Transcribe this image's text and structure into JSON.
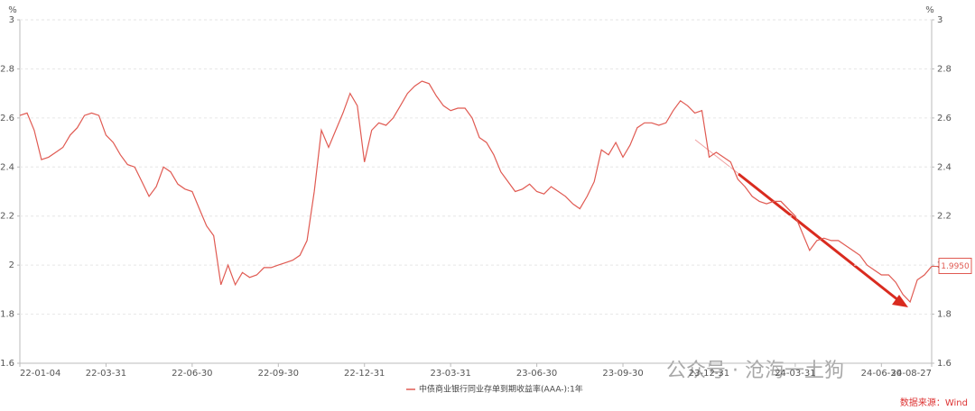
{
  "chart_data": {
    "type": "line",
    "categories": [
      "22-01-04",
      null,
      null,
      null,
      null,
      null,
      null,
      null,
      null,
      null,
      null,
      null,
      "22-03-31",
      null,
      null,
      null,
      null,
      null,
      null,
      null,
      null,
      null,
      null,
      null,
      "22-06-30",
      null,
      null,
      null,
      null,
      null,
      null,
      null,
      null,
      null,
      null,
      null,
      "22-09-30",
      null,
      null,
      null,
      null,
      null,
      null,
      null,
      null,
      null,
      null,
      null,
      "22-12-31",
      null,
      null,
      null,
      null,
      null,
      null,
      null,
      null,
      null,
      null,
      null,
      "23-03-31",
      null,
      null,
      null,
      null,
      null,
      null,
      null,
      null,
      null,
      null,
      null,
      "23-06-30",
      null,
      null,
      null,
      null,
      null,
      null,
      null,
      null,
      null,
      null,
      null,
      "23-09-30",
      null,
      null,
      null,
      null,
      null,
      null,
      null,
      null,
      null,
      null,
      null,
      "23-12-31",
      null,
      null,
      null,
      null,
      null,
      null,
      null,
      null,
      null,
      null,
      null,
      "24-03-31",
      null,
      null,
      null,
      null,
      null,
      null,
      null,
      null,
      null,
      null,
      null,
      "24-06-30",
      null,
      null,
      null,
      null,
      null,
      null,
      "24-08-27"
    ],
    "series": [
      {
        "name": "中债商业银行同业存单到期收益率(AAA-):1年",
        "color": "#e05a52",
        "values": [
          2.61,
          2.62,
          2.55,
          2.43,
          2.44,
          2.46,
          2.48,
          2.53,
          2.56,
          2.61,
          2.62,
          2.61,
          2.53,
          2.5,
          2.45,
          2.41,
          2.4,
          2.34,
          2.28,
          2.32,
          2.4,
          2.38,
          2.33,
          2.31,
          2.3,
          2.23,
          2.16,
          2.12,
          1.92,
          2.0,
          1.92,
          1.97,
          1.95,
          1.96,
          1.99,
          1.99,
          2.0,
          2.01,
          2.02,
          2.04,
          2.1,
          2.3,
          2.55,
          2.48,
          2.55,
          2.62,
          2.7,
          2.65,
          2.42,
          2.55,
          2.58,
          2.57,
          2.6,
          2.65,
          2.7,
          2.73,
          2.75,
          2.74,
          2.69,
          2.65,
          2.63,
          2.64,
          2.64,
          2.6,
          2.52,
          2.5,
          2.45,
          2.38,
          2.34,
          2.3,
          2.31,
          2.33,
          2.3,
          2.29,
          2.32,
          2.3,
          2.28,
          2.25,
          2.23,
          2.28,
          2.34,
          2.47,
          2.45,
          2.5,
          2.44,
          2.49,
          2.56,
          2.58,
          2.58,
          2.57,
          2.58,
          2.63,
          2.67,
          2.65,
          2.62,
          2.63,
          2.44,
          2.46,
          2.44,
          2.42,
          2.35,
          2.32,
          2.28,
          2.26,
          2.25,
          2.26,
          2.26,
          2.23,
          2.2,
          2.13,
          2.06,
          2.1,
          2.11,
          2.1,
          2.1,
          2.08,
          2.06,
          2.04,
          2.0,
          1.98,
          1.96,
          1.96,
          1.93,
          1.88,
          1.85,
          1.94,
          1.96,
          1.995
        ],
        "value_labels": [
          null,
          null,
          null,
          null,
          null,
          null,
          null,
          null,
          null,
          null,
          null,
          null,
          null,
          null,
          null,
          null,
          null,
          null,
          null,
          null,
          null,
          null,
          null,
          null,
          null,
          null,
          null,
          null,
          null,
          null,
          null,
          null,
          null,
          null,
          null,
          null,
          null,
          null,
          null,
          null,
          null,
          null,
          null,
          null,
          null,
          null,
          null,
          null,
          null,
          null,
          null,
          null,
          null,
          null,
          null,
          null,
          null,
          null,
          null,
          null,
          null,
          null,
          null,
          null,
          null,
          null,
          null,
          null,
          null,
          null,
          null,
          null,
          null,
          null,
          null,
          null,
          null,
          null,
          null,
          null,
          null,
          null,
          null,
          null,
          null,
          null,
          null,
          null,
          null,
          null,
          null,
          null,
          null,
          null,
          null,
          null,
          null,
          null,
          null,
          null,
          null,
          null,
          null,
          null,
          null,
          null,
          null,
          null,
          null,
          null,
          null,
          null,
          null,
          null,
          null,
          null,
          null,
          null,
          null,
          null,
          null,
          null,
          null,
          null,
          null,
          null,
          null,
          "1.9950"
        ]
      }
    ],
    "ylim": [
      1.6,
      3
    ],
    "yticks": [
      1.6,
      1.8,
      2,
      2.2,
      2.4,
      2.6,
      2.8,
      3
    ],
    "y2lim": [
      1.6,
      3
    ],
    "y2ticks": [
      1.6,
      1.8,
      2,
      2.2,
      2.4,
      2.6,
      2.8,
      3
    ],
    "y_unit": "%",
    "y2_unit": "%",
    "grid": true,
    "watermark": "公众号 · 沧海一土狗",
    "source": "数据来源：Wind"
  }
}
